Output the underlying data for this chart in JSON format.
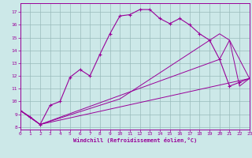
{
  "bg_color": "#cce8e8",
  "line_color": "#990099",
  "grid_color": "#99bbbb",
  "xlabel": "Windchill (Refroidissement éolien,°C)",
  "xlim": [
    0,
    23
  ],
  "ylim": [
    7.8,
    17.7
  ],
  "yticks": [
    8,
    9,
    10,
    11,
    12,
    13,
    14,
    15,
    16,
    17
  ],
  "xticks": [
    0,
    1,
    2,
    3,
    4,
    5,
    6,
    7,
    8,
    9,
    10,
    11,
    12,
    13,
    14,
    15,
    16,
    17,
    18,
    19,
    20,
    21,
    22,
    23
  ],
  "curve1_x": [
    0,
    1,
    2,
    3,
    4,
    5,
    6,
    7,
    8,
    9,
    10,
    11,
    12,
    13,
    14,
    15,
    16,
    17,
    18,
    19,
    20,
    21,
    22,
    23
  ],
  "curve1_y": [
    9.3,
    8.8,
    8.2,
    9.7,
    10.0,
    11.9,
    12.5,
    12.0,
    13.7,
    15.3,
    16.7,
    16.8,
    17.2,
    17.2,
    16.5,
    16.1,
    16.5,
    16.0,
    15.3,
    14.8,
    13.3,
    11.2,
    11.5,
    11.8
  ],
  "line1_x": [
    0,
    2,
    23
  ],
  "line1_y": [
    9.3,
    8.2,
    11.8
  ],
  "line2_x": [
    0,
    2,
    20,
    21,
    22,
    23
  ],
  "line2_y": [
    9.3,
    8.2,
    13.3,
    14.8,
    13.3,
    11.8
  ],
  "line3_x": [
    0,
    2,
    10,
    20,
    21,
    22,
    23
  ],
  "line3_y": [
    9.3,
    8.2,
    10.2,
    15.3,
    14.8,
    11.2,
    11.8
  ]
}
